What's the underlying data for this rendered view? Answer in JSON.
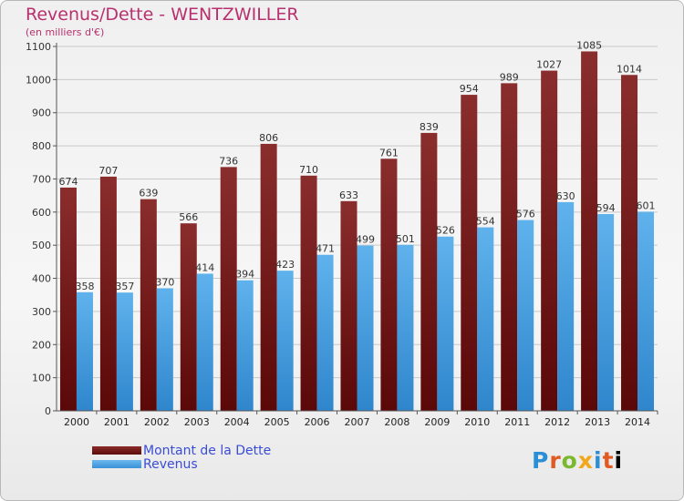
{
  "chart_data": {
    "type": "bar",
    "title": "Revenus/Dette - WENTZWILLER",
    "subtitle": "(en milliers d'€)",
    "categories": [
      "2000",
      "2001",
      "2002",
      "2003",
      "2004",
      "2005",
      "2006",
      "2007",
      "2008",
      "2009",
      "2010",
      "2011",
      "2012",
      "2013",
      "2014"
    ],
    "series": [
      {
        "name": "Montant de la Dette",
        "color": "#6e1818",
        "values": [
          674,
          707,
          639,
          566,
          736,
          806,
          710,
          633,
          761,
          839,
          954,
          989,
          1027,
          1085,
          1014
        ]
      },
      {
        "name": "Revenus",
        "color": "#4aa3e4",
        "values": [
          358,
          357,
          370,
          414,
          394,
          423,
          471,
          499,
          501,
          526,
          554,
          576,
          630,
          594,
          601
        ]
      }
    ],
    "ylim": [
      0,
      1100
    ],
    "yticks": [
      0,
      100,
      200,
      300,
      400,
      500,
      600,
      700,
      800,
      900,
      1000,
      1100
    ],
    "grid": true,
    "legend_position": "bottom-left"
  },
  "logo": {
    "letters": [
      "P",
      "r",
      "o",
      "x",
      "i",
      "t",
      "i"
    ]
  }
}
